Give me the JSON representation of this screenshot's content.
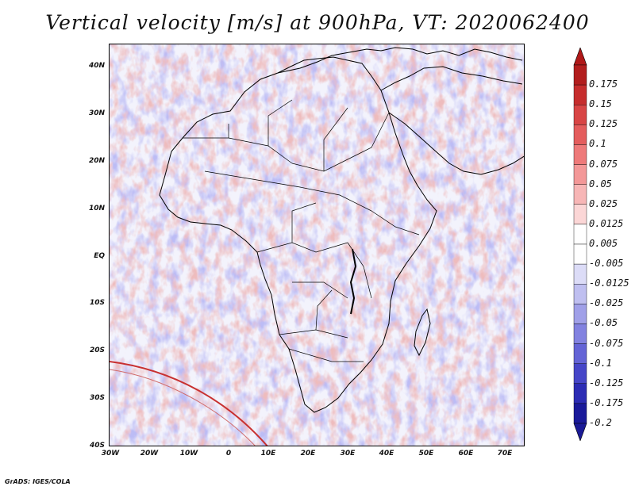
{
  "title": "Vertical velocity [m/s] at 900hPa, VT: 2020062400",
  "credit": "GrADS: IGES/COLA",
  "map": {
    "lat_ticks": [
      "40N",
      "30N",
      "20N",
      "10N",
      "EQ",
      "10S",
      "20S",
      "30S",
      "40S"
    ],
    "lon_ticks": [
      "30W",
      "20W",
      "10W",
      "0",
      "10E",
      "20E",
      "30E",
      "40E",
      "50E",
      "60E",
      "70E"
    ],
    "lat_range": [
      -40,
      45
    ],
    "lon_range": [
      -30,
      75
    ],
    "field": "vertical velocity",
    "level": "900hPa"
  },
  "colorbar": {
    "labels": [
      "0.175",
      "0.15",
      "0.125",
      "0.1",
      "0.075",
      "0.05",
      "0.025",
      "0.0125",
      "0.005",
      "-0.005",
      "-0.0125",
      "-0.025",
      "-0.05",
      "-0.075",
      "-0.1",
      "-0.125",
      "-0.175",
      "-0.2"
    ],
    "colors": [
      "#b21e1e",
      "#c62d2d",
      "#d84545",
      "#e45d5d",
      "#ee7a7a",
      "#f39898",
      "#f7b6b6",
      "#fbd6d6",
      "#ffffff",
      "#ffffff",
      "#dcdcf7",
      "#bfbff0",
      "#a0a0e8",
      "#8282e0",
      "#6464d6",
      "#4646c8",
      "#2c2cb4",
      "#1a1a9a"
    ],
    "top_arrow_color": "#b01818",
    "bottom_arrow_color": "#1a1a96"
  }
}
